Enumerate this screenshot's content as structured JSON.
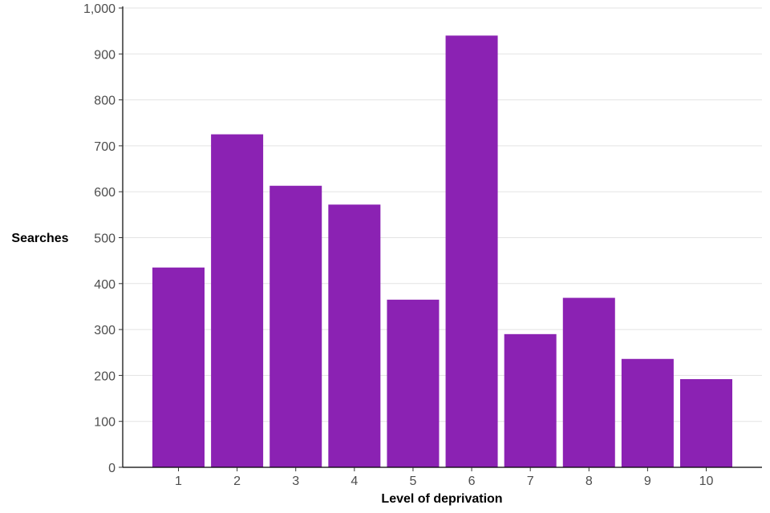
{
  "chart_data": {
    "type": "bar",
    "categories": [
      "1",
      "2",
      "3",
      "4",
      "5",
      "6",
      "7",
      "8",
      "9",
      "10"
    ],
    "values": [
      435,
      725,
      613,
      572,
      365,
      940,
      290,
      369,
      236,
      192
    ],
    "xlabel": "Level of deprivation",
    "ylabel": "Searches",
    "ylim": [
      0,
      1000
    ],
    "yticks": [
      0,
      100,
      200,
      300,
      400,
      500,
      600,
      700,
      800,
      900,
      1000
    ],
    "ytick_labels": [
      "0",
      "100",
      "200",
      "300",
      "400",
      "500",
      "600",
      "700",
      "800",
      "900",
      "1,000"
    ],
    "grid": true,
    "legend": "none",
    "bar_color": "#8b22b3"
  }
}
